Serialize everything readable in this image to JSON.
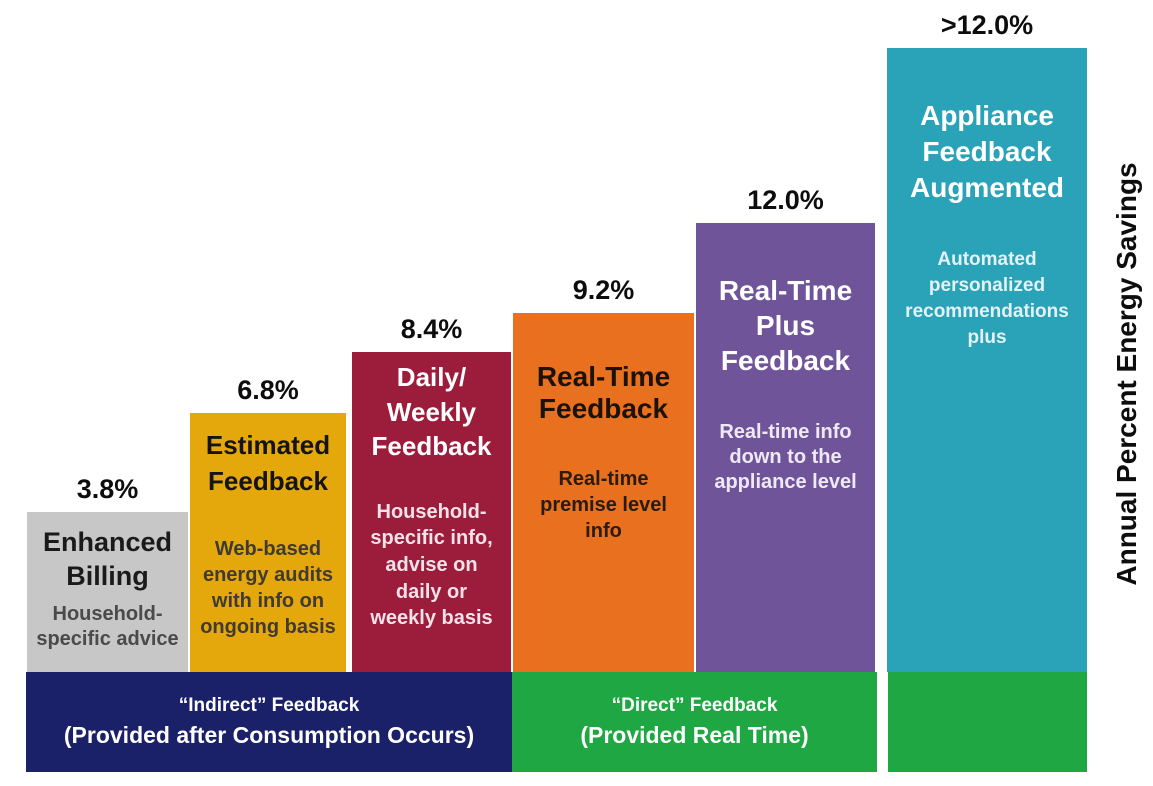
{
  "chart_data": {
    "type": "bar",
    "title": "",
    "ylabel": "Annual Percent Energy Savings",
    "ylim_percent": [
      0,
      13
    ],
    "legend": "none",
    "grid": false,
    "bars": [
      {
        "category": "Enhanced Billing",
        "value_percent": 3.8,
        "value_qualifier": "",
        "value_label": "3.8%",
        "title": "Enhanced\nBilling",
        "description": "Household-\nspecific advice",
        "bar_color": "#c7c7c7",
        "title_color": "#1a1a1a",
        "description_color": "#4a4a4a"
      },
      {
        "category": "Estimated Feedback",
        "value_percent": 6.8,
        "value_qualifier": "",
        "value_label": "6.8%",
        "title": "Estimated\nFeedback",
        "description": "Web-based\nenergy audits\nwith info on\nongoing basis",
        "bar_color": "#e5a80c",
        "title_color": "#141414",
        "description_color": "#3f3a32"
      },
      {
        "category": "Daily/ Weekly Feedback",
        "value_percent": 8.4,
        "value_qualifier": "",
        "value_label": "8.4%",
        "title": "Daily/\nWeekly\nFeedback",
        "description": "Household-\nspecific info,\nadvise on\ndaily or\nweekly basis",
        "bar_color": "#9c1c3c",
        "title_color": "#ffffff",
        "description_color": "#f3e2e8"
      },
      {
        "category": "Real-Time Feedback",
        "value_percent": 9.2,
        "value_qualifier": "",
        "value_label": "9.2%",
        "title": "Real-Time\nFeedback",
        "description": "Real-time\npremise level\ninfo",
        "bar_color": "#e9701e",
        "title_color": "#1c1208",
        "description_color": "#2a1c0c"
      },
      {
        "category": "Real-Time Plus Feedback",
        "value_percent": 12.0,
        "value_qualifier": "",
        "value_label": "12.0%",
        "title": "Real-Time\nPlus\nFeedback",
        "description": "Real-time info\ndown to the\nappliance level",
        "bar_color": "#6f5499",
        "title_color": "#ffffff",
        "description_color": "#efe9f6"
      },
      {
        "category": "Appliance Feedback Augmented",
        "value_percent": 12.0,
        "value_qualifier": ">",
        "value_label": ">12.0%",
        "title": "Appliance\nFeedback\nAugmented",
        "description": "Automated\npersonalized\nrecommendations\nplus",
        "bar_color": "#2aa2b8",
        "title_color": "#ffffff",
        "description_color": "#e3f2f6"
      }
    ],
    "bands": [
      {
        "line1": "“Indirect” Feedback",
        "line2": "(Provided after Consumption Occurs)",
        "color": "#1b2168",
        "text_color": "#ffffff",
        "covers_categories": [
          "Enhanced Billing",
          "Estimated Feedback",
          "Daily/ Weekly Feedback"
        ]
      },
      {
        "line1": "“Direct” Feedback",
        "line2": "(Provided Real Time)",
        "color": "#1ea742",
        "text_color": "#ffffff",
        "covers_categories": [
          "Real-Time Feedback",
          "Real-Time Plus Feedback"
        ]
      },
      {
        "line1": "",
        "line2": "",
        "color": "#1ea742",
        "text_color": "#ffffff",
        "covers_categories": [
          "Appliance Feedback Augmented"
        ]
      }
    ]
  }
}
